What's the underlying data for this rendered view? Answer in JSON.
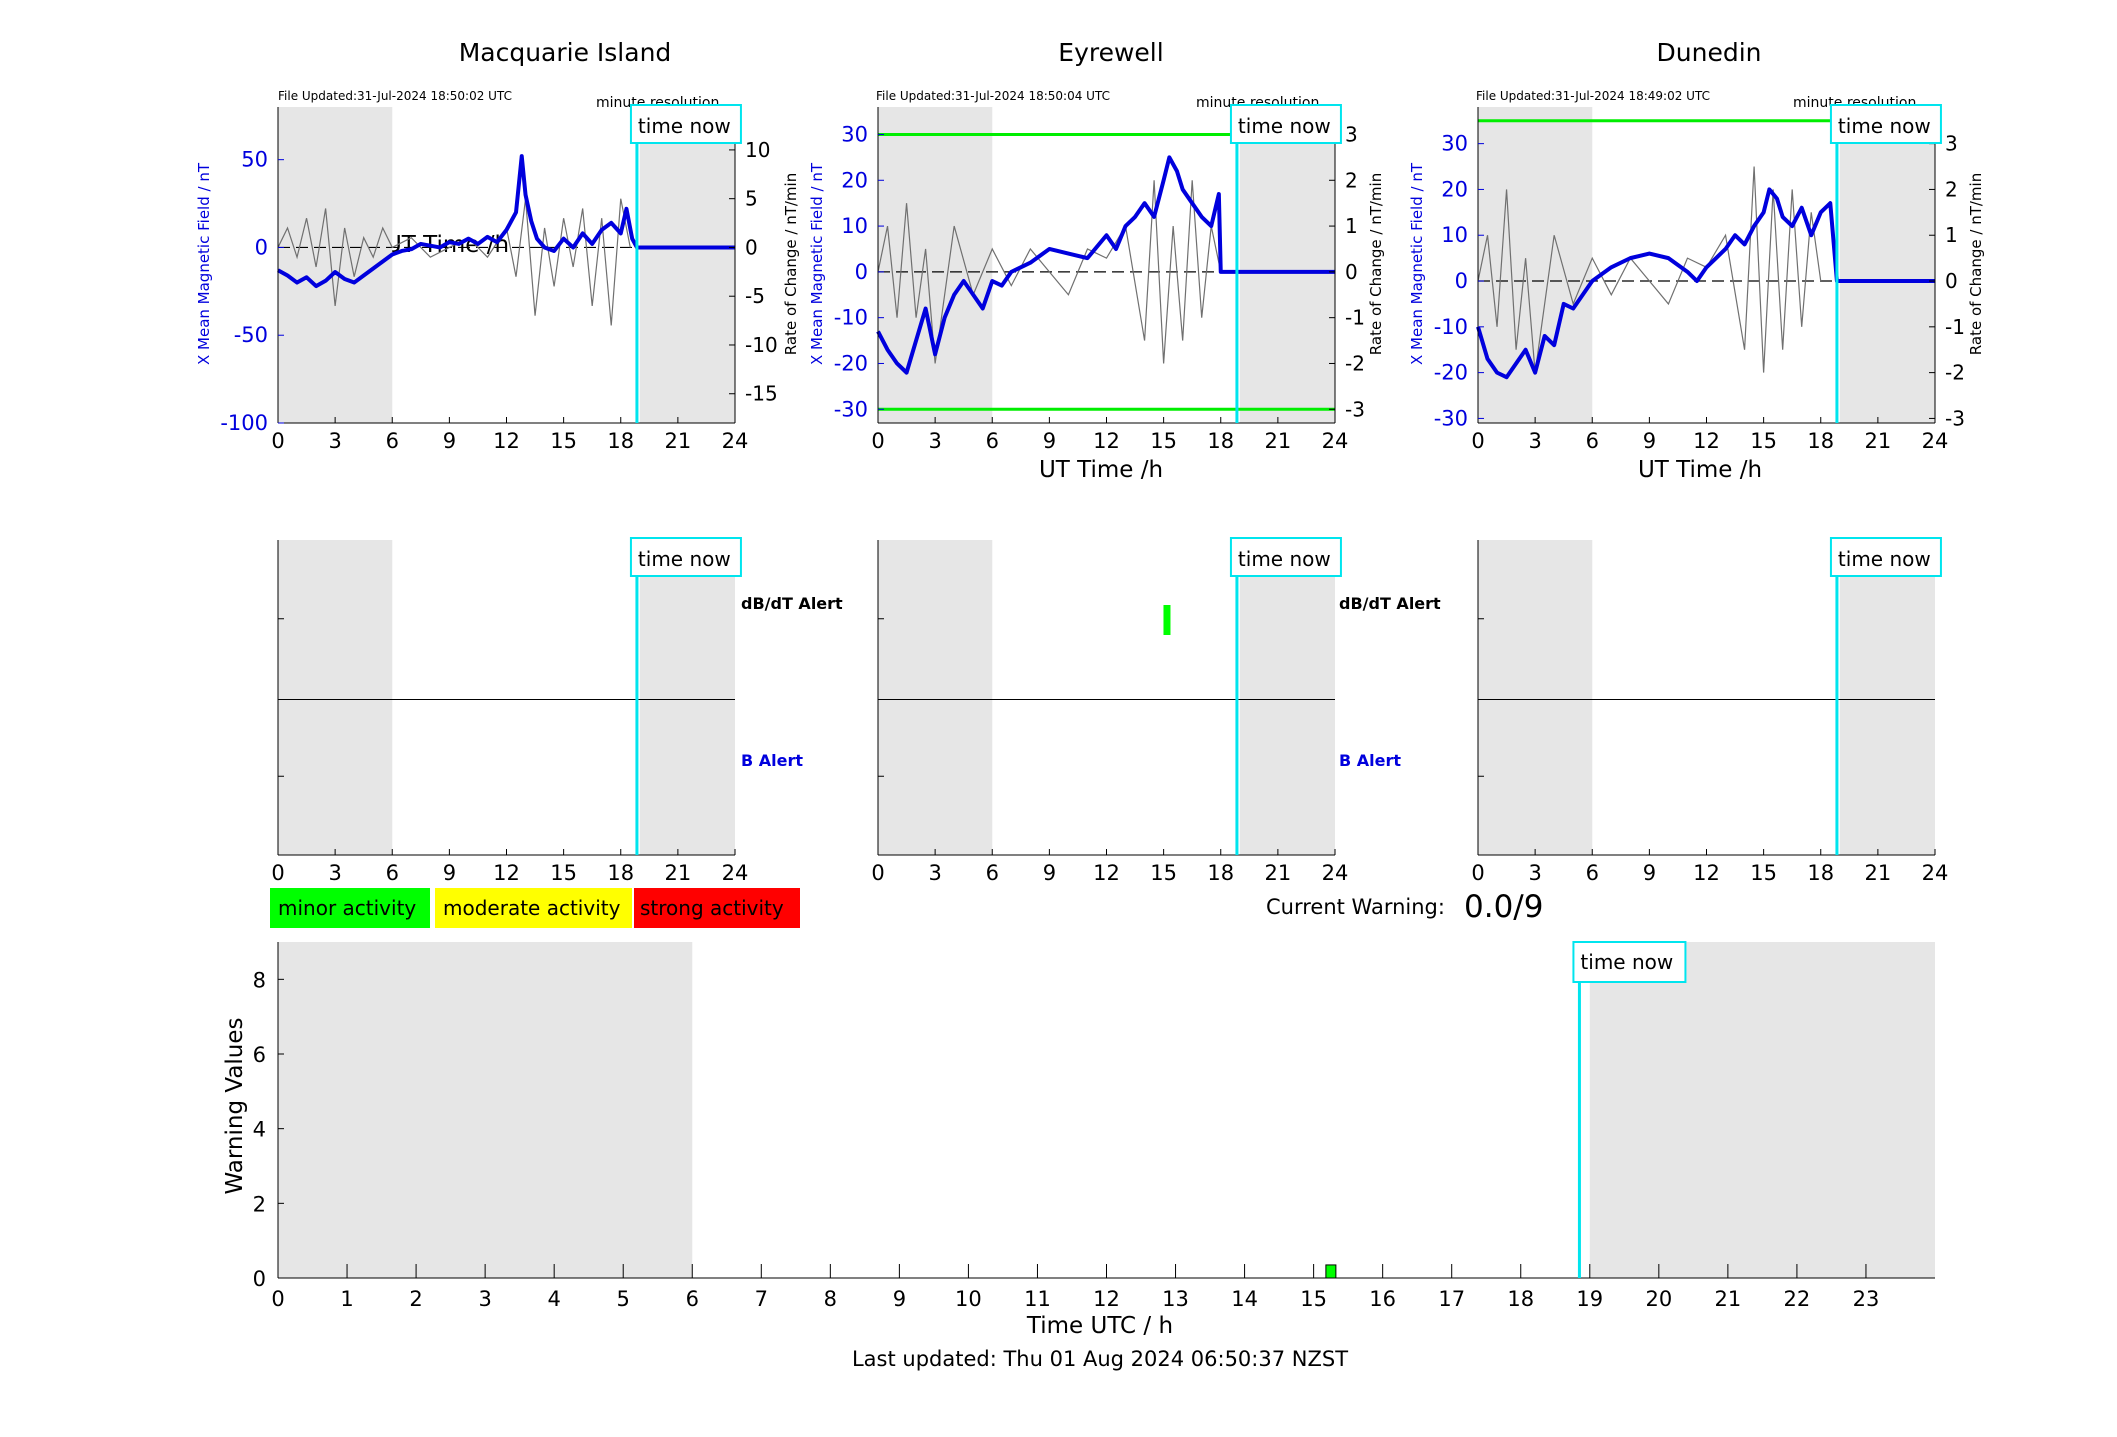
{
  "stations": [
    {
      "title": "Macquarie Island",
      "file_updated": "File Updated:31-Jul-2024 18:50:02 UTC",
      "resolution": "minute resolution",
      "ylabel_left": "X Mean Magnetic Field / nT",
      "ylabel_right": "Rate of Change / nT/min",
      "xlabel": "UT Time /h",
      "time_now_label": "time now"
    },
    {
      "title": "Eyrewell",
      "file_updated": "File Updated:31-Jul-2024 18:50:04 UTC",
      "resolution": "minute resolution",
      "ylabel_left": "X Mean Magnetic Field / nT",
      "ylabel_right": "Rate of Change / nT/min",
      "xlabel": "UT Time /h",
      "time_now_label": "time now"
    },
    {
      "title": "Dunedin",
      "file_updated": "File Updated:31-Jul-2024 18:49:02 UTC",
      "resolution": "minute resolution",
      "ylabel_left": "X Mean Magnetic Field / nT",
      "ylabel_right": "Rate of Change / nT/min",
      "xlabel": "UT Time /h",
      "time_now_label": "time now"
    }
  ],
  "alert_panels": {
    "dbdt_label": "dB/dT Alert",
    "b_label": "B Alert",
    "time_now_label": "time now"
  },
  "legend": {
    "minor": "minor activity",
    "moderate": "moderate activity",
    "strong": "strong activity"
  },
  "current_warning": {
    "label": "Current Warning:",
    "value": "0.0/9"
  },
  "warning_chart": {
    "ylabel": "Warning Values",
    "xlabel": "Time UTC / h",
    "time_now_label": "time now"
  },
  "footer": {
    "last_updated": "Last updated: Thu 01 Aug 2024 06:50:37 NZST"
  },
  "colors": {
    "field_line": "#0000dd",
    "rate_line": "#707070",
    "time_now": "#00e5ee",
    "threshold": "#00ee00",
    "night_shade": "#e6e6e6",
    "minor": "#00ff00",
    "moderate": "#ffff00",
    "strong": "#ff0000"
  },
  "chart_data": [
    {
      "type": "line",
      "station": "Macquarie Island",
      "x_hours_ticks": [
        0,
        3,
        6,
        9,
        12,
        15,
        18,
        21,
        24
      ],
      "xlim": [
        0,
        24
      ],
      "ylim_left": [
        -100,
        80
      ],
      "yticks_left": [
        -100,
        -50,
        0,
        50
      ],
      "ylim_right": [
        -18,
        14.4
      ],
      "yticks_right": [
        -15,
        -10,
        -5,
        0,
        5,
        10
      ],
      "time_now_hour": 18.85,
      "night_shade_hours": [
        [
          0,
          6
        ],
        [
          19,
          24
        ]
      ],
      "series": [
        {
          "axis": "left",
          "x": [
            0,
            0.5,
            1,
            1.5,
            2,
            2.5,
            3,
            3.5,
            4,
            4.5,
            5,
            5.5,
            6,
            6.5,
            7,
            7.5,
            8,
            8.5,
            9,
            9.5,
            10,
            10.5,
            11,
            11.5,
            12,
            12.5,
            12.8,
            13,
            13.3,
            13.6,
            14,
            14.5,
            15,
            15.5,
            16,
            16.5,
            17,
            17.5,
            18,
            18.3,
            18.6,
            18.85,
            24
          ],
          "values": [
            -13,
            -16,
            -20,
            -17,
            -22,
            -19,
            -14,
            -18,
            -20,
            -16,
            -12,
            -8,
            -4,
            -2,
            -1,
            2,
            1,
            0,
            3,
            2,
            5,
            2,
            6,
            3,
            10,
            20,
            52,
            30,
            15,
            5,
            0,
            -2,
            5,
            0,
            8,
            2,
            10,
            14,
            8,
            22,
            5,
            0,
            0
          ]
        },
        {
          "axis": "right",
          "x": [
            0,
            0.5,
            1,
            1.5,
            2,
            2.5,
            3,
            3.5,
            4,
            4.5,
            5,
            5.5,
            6,
            7,
            8,
            9,
            10,
            11,
            12,
            12.5,
            13,
            13.5,
            14,
            14.5,
            15,
            15.5,
            16,
            16.5,
            17,
            17.5,
            18,
            18.5
          ],
          "values": [
            0,
            2,
            -1,
            3,
            -2,
            4,
            -6,
            2,
            -3,
            1,
            -1,
            2,
            0,
            1,
            -1,
            0,
            1,
            -1,
            2,
            -3,
            5,
            -7,
            2,
            -4,
            3,
            -2,
            4,
            -6,
            3,
            -8,
            5,
            0
          ]
        }
      ],
      "thresholds": []
    },
    {
      "type": "line",
      "station": "Eyrewell",
      "x_hours_ticks": [
        0,
        3,
        6,
        9,
        12,
        15,
        18,
        21,
        24
      ],
      "xlim": [
        0,
        24
      ],
      "ylim_left": [
        -33,
        36
      ],
      "yticks_left": [
        -30,
        -20,
        -10,
        0,
        10,
        20,
        30
      ],
      "ylim_right": [
        -3.3,
        3.6
      ],
      "yticks_right": [
        -3,
        -2,
        -1,
        0,
        1,
        2,
        3
      ],
      "time_now_hour": 18.85,
      "night_shade_hours": [
        [
          0,
          6
        ],
        [
          19,
          24
        ]
      ],
      "series": [
        {
          "axis": "left",
          "x": [
            0,
            0.5,
            1,
            1.5,
            2,
            2.5,
            3,
            3.5,
            4,
            4.5,
            5,
            5.5,
            6,
            6.5,
            7,
            8,
            9,
            10,
            11,
            12,
            12.5,
            13,
            13.5,
            14,
            14.5,
            15,
            15.3,
            15.7,
            16,
            16.5,
            17,
            17.5,
            17.9,
            18,
            18.85,
            24
          ],
          "values": [
            -13,
            -17,
            -20,
            -22,
            -15,
            -8,
            -18,
            -10,
            -5,
            -2,
            -5,
            -8,
            -2,
            -3,
            0,
            2,
            5,
            4,
            3,
            8,
            5,
            10,
            12,
            15,
            12,
            20,
            25,
            22,
            18,
            15,
            12,
            10,
            17,
            0,
            0,
            0
          ]
        },
        {
          "axis": "right",
          "x": [
            0,
            0.5,
            1,
            1.5,
            2,
            2.5,
            3,
            4,
            5,
            6,
            7,
            8,
            9,
            10,
            11,
            12,
            13,
            14,
            14.5,
            15,
            15.5,
            16,
            16.5,
            17,
            17.5,
            18
          ],
          "values": [
            0,
            1,
            -1,
            1.5,
            -1,
            0.5,
            -2,
            1,
            -0.5,
            0.5,
            -0.3,
            0.5,
            0,
            -0.5,
            0.5,
            0.3,
            1,
            -1.5,
            2,
            -2,
            1,
            -1.5,
            2,
            -1,
            1,
            0
          ]
        }
      ],
      "thresholds": [
        30,
        -30
      ]
    },
    {
      "type": "line",
      "station": "Dunedin",
      "x_hours_ticks": [
        0,
        3,
        6,
        9,
        12,
        15,
        18,
        21,
        24
      ],
      "xlim": [
        0,
        24
      ],
      "ylim_left": [
        -31,
        38
      ],
      "yticks_left": [
        -30,
        -20,
        -10,
        0,
        10,
        20,
        30
      ],
      "ylim_right": [
        -3.1,
        3.8
      ],
      "yticks_right": [
        -3,
        -2,
        -1,
        0,
        1,
        2,
        3
      ],
      "time_now_hour": 18.85,
      "night_shade_hours": [
        [
          0,
          6
        ],
        [
          19,
          24
        ]
      ],
      "series": [
        {
          "axis": "left",
          "x": [
            0,
            0.5,
            1,
            1.5,
            2,
            2.5,
            3,
            3.5,
            4,
            4.5,
            5,
            5.5,
            6,
            7,
            8,
            9,
            10,
            11,
            11.5,
            12,
            12.5,
            13,
            13.5,
            14,
            14.5,
            15,
            15.3,
            15.7,
            16,
            16.5,
            17,
            17.5,
            18,
            18.5,
            18.85,
            24
          ],
          "values": [
            -10,
            -17,
            -20,
            -21,
            -18,
            -15,
            -20,
            -12,
            -14,
            -5,
            -6,
            -3,
            0,
            3,
            5,
            6,
            5,
            2,
            0,
            3,
            5,
            7,
            10,
            8,
            12,
            15,
            20,
            18,
            14,
            12,
            16,
            10,
            15,
            17,
            0,
            0
          ]
        },
        {
          "axis": "right",
          "x": [
            0,
            0.5,
            1,
            1.5,
            2,
            2.5,
            3,
            4,
            5,
            6,
            7,
            8,
            9,
            10,
            11,
            12,
            13,
            14,
            14.5,
            15,
            15.5,
            16,
            16.5,
            17,
            17.5,
            18
          ],
          "values": [
            0,
            1,
            -1,
            2,
            -1.5,
            0.5,
            -2,
            1,
            -0.5,
            0.5,
            -0.3,
            0.5,
            0,
            -0.5,
            0.5,
            0.3,
            1,
            -1.5,
            2.5,
            -2,
            2,
            -1.5,
            2,
            -1,
            1.5,
            0
          ]
        }
      ],
      "thresholds": [
        35
      ]
    },
    {
      "type": "bar",
      "title": "",
      "xlabel": "Time UTC / h",
      "ylabel": "Warning Values",
      "xlim": [
        0,
        24
      ],
      "ylim": [
        0,
        9
      ],
      "x_ticks": [
        0,
        1,
        2,
        3,
        4,
        5,
        6,
        7,
        8,
        9,
        10,
        11,
        12,
        13,
        14,
        15,
        16,
        17,
        18,
        19,
        20,
        21,
        22,
        23
      ],
      "y_ticks": [
        0,
        2,
        4,
        6,
        8
      ],
      "time_now_hour": 18.85,
      "night_shade_hours": [
        [
          0,
          6
        ],
        [
          19,
          24
        ]
      ],
      "bars": [
        {
          "x": 15.25,
          "value": 0.35,
          "level": "minor"
        }
      ]
    }
  ]
}
